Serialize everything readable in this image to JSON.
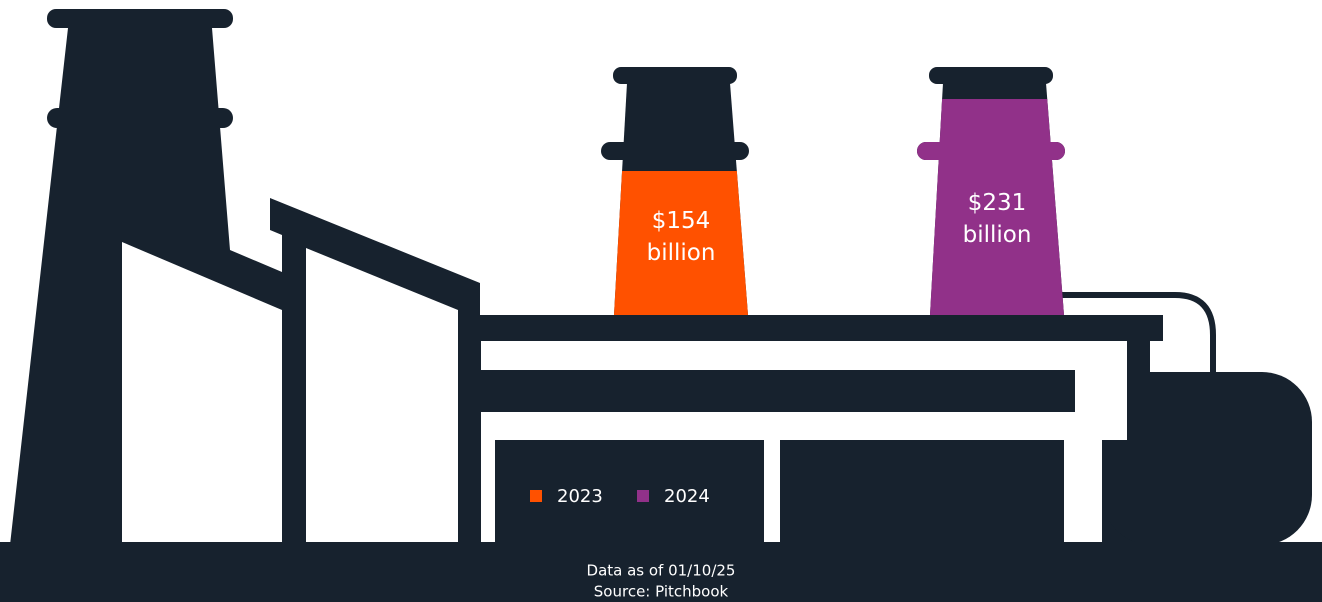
{
  "chart_data": {
    "type": "pictograph",
    "categories": [
      "2023",
      "2024"
    ],
    "values": [
      154,
      231
    ],
    "value_labels": [
      "$154 billion",
      "$231 billion"
    ],
    "colors": [
      "#ff5100",
      "#913189"
    ],
    "footnotes": [
      "Data as of 01/10/25",
      "Source: Pitchbook"
    ]
  }
}
